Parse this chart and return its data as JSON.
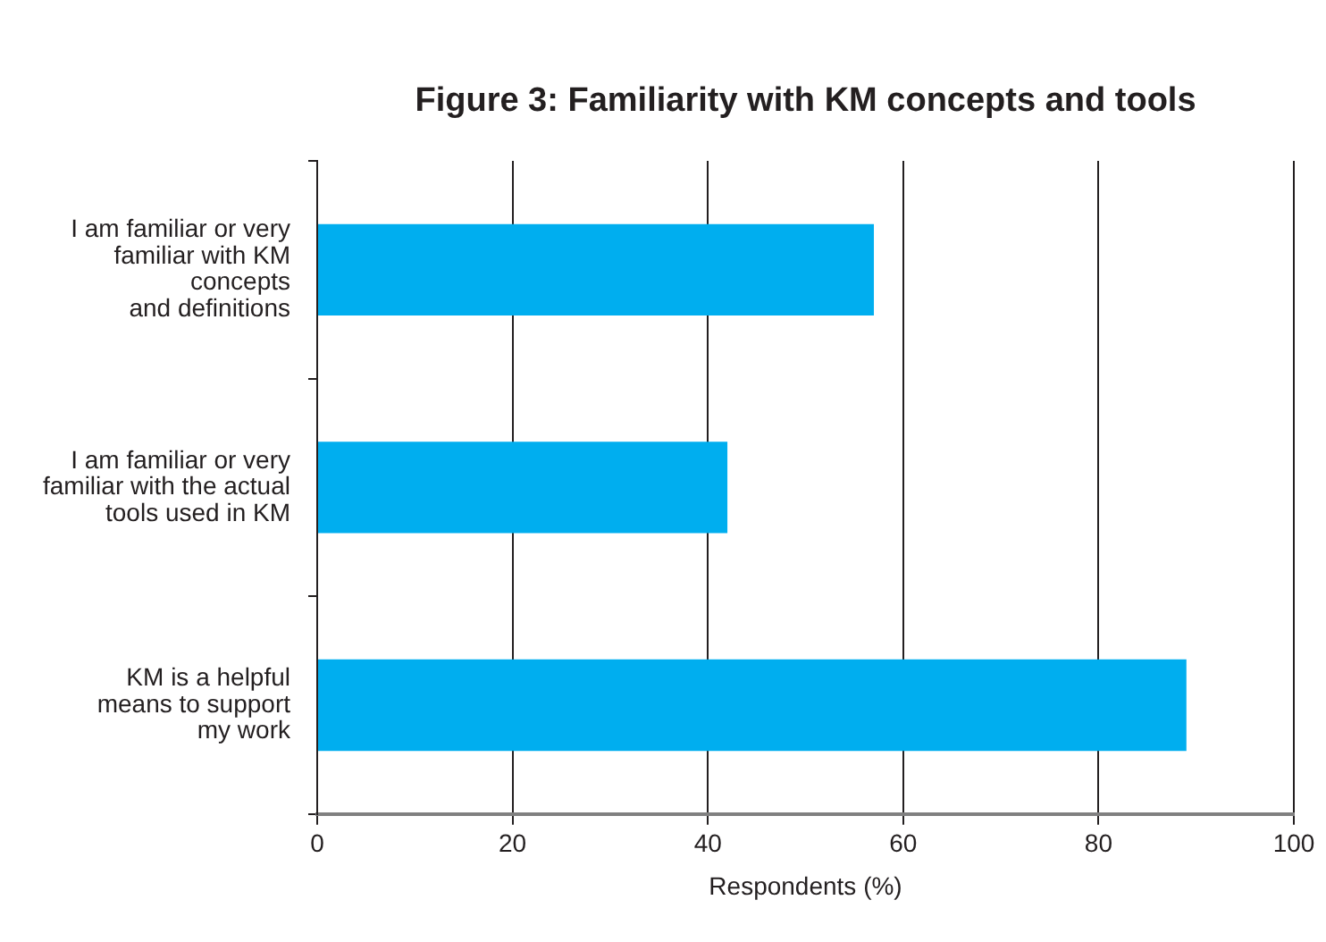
{
  "chart_data": {
    "type": "bar",
    "orientation": "horizontal",
    "title": "Figure 3: Familiarity with KM concepts and tools",
    "xlabel": "Respondents (%)",
    "categories": [
      "I am familiar or very\nfamiliar with KM\nconcepts\nand definitions",
      "I am familiar or very\nfamiliar with the actual\ntools used in KM",
      "KM is a helpful\nmeans to support\nmy work"
    ],
    "values": [
      57,
      42,
      89
    ],
    "color": "#00aeef",
    "xlim": [
      0,
      100
    ],
    "xticks": [
      0,
      20,
      40,
      60,
      80,
      100
    ],
    "grid": "x",
    "legend": false
  }
}
